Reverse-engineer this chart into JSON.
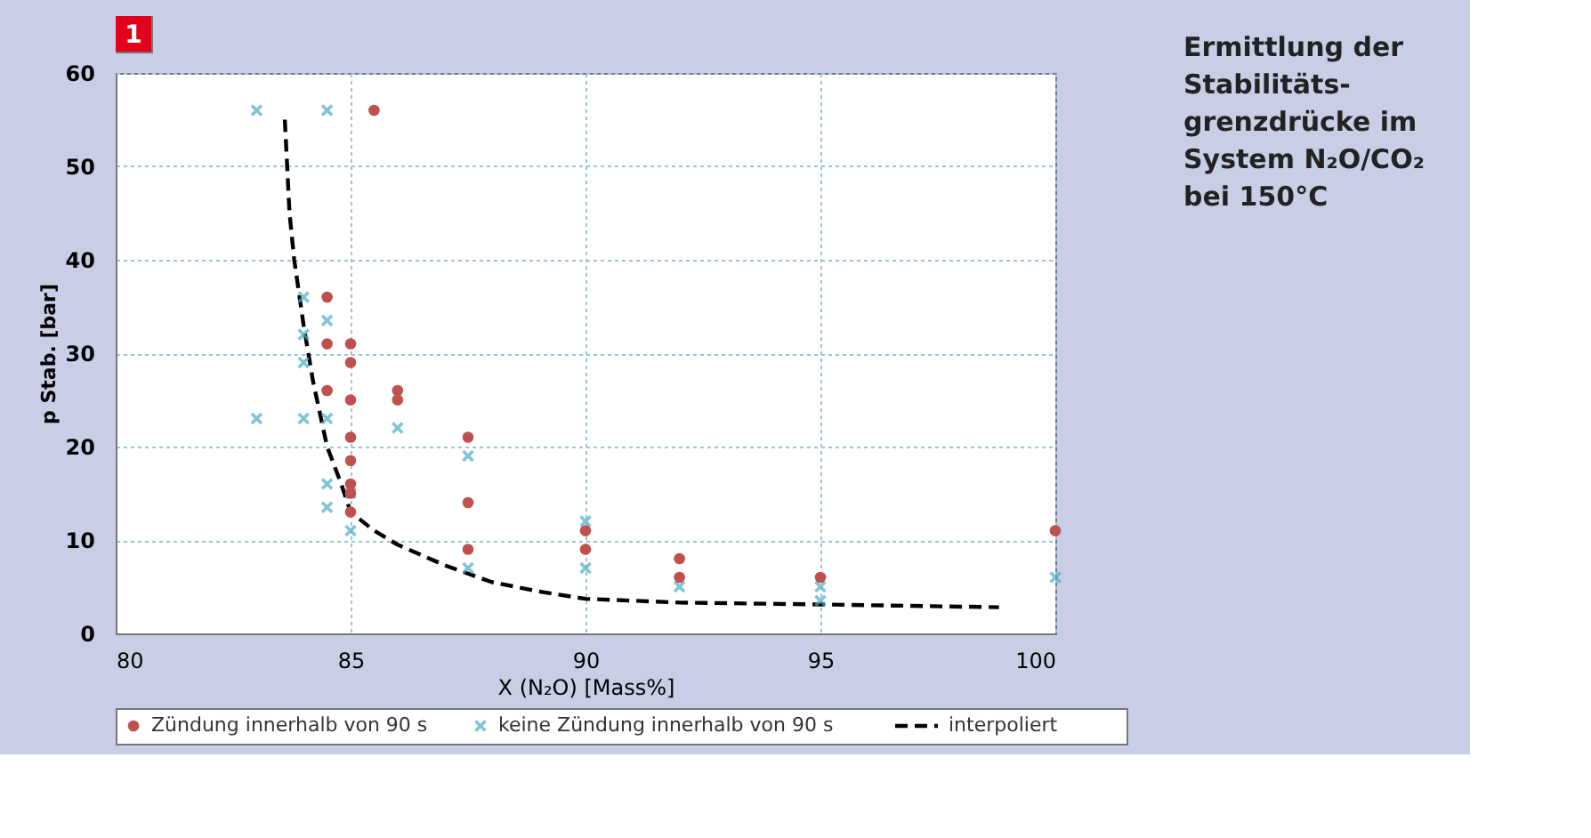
{
  "chart_data": {
    "type": "scatter",
    "title": "Ermittlung der Stabilitäts- grenzdrücke im System N₂O/CO₂ bei 150°C",
    "xlabel": "X (N₂O) [Mass%]",
    "ylabel": "p Stab. [bar]",
    "annotations": [
      "1"
    ],
    "xlim": [
      80,
      100
    ],
    "xticks": [
      80,
      85,
      90,
      95,
      100
    ],
    "ylim": [
      0,
      60
    ],
    "yticks": [
      0,
      10,
      20,
      30,
      40,
      50,
      60
    ],
    "grid": true,
    "legend": "bottom",
    "series": [
      {
        "name": "Zündung innerhalb von 90 s",
        "color": "#c0504d",
        "marker": "circle",
        "x": [
          85.5,
          84.5,
          84.5,
          84.5,
          85,
          85,
          85,
          85,
          85,
          85,
          85,
          85,
          86,
          86,
          87.5,
          87.5,
          87.5,
          90,
          90,
          92,
          92,
          95,
          100
        ],
        "values": [
          56,
          36,
          31,
          26,
          31,
          29,
          25,
          21,
          18.5,
          16,
          15,
          13,
          26,
          25,
          21,
          14,
          9,
          11,
          9,
          8,
          6,
          6,
          11
        ]
      },
      {
        "name": "keine Zündung innerhalb von 90 s",
        "color": "#4bacc6",
        "marker": "cross",
        "x": [
          83,
          84.5,
          84,
          84.5,
          84,
          84,
          83,
          84,
          84.5,
          84.5,
          84.5,
          85,
          85,
          86,
          87.5,
          87.5,
          90,
          90,
          92,
          95,
          95,
          100
        ],
        "values": [
          56,
          56,
          36,
          33.5,
          32,
          29,
          23,
          23,
          23,
          16,
          13.5,
          15,
          11,
          22,
          19,
          7,
          12,
          7,
          5,
          5,
          3.5,
          6
        ]
      },
      {
        "name": "interpoliert",
        "type": "line",
        "color": "#000000",
        "line_style": "dashed",
        "marker": "none",
        "x": [
          83.6,
          83.7,
          83.8,
          84,
          84.2,
          84.5,
          84.8,
          85,
          85.5,
          86,
          87,
          88,
          89,
          90,
          92,
          95,
          98.8
        ],
        "values": [
          55,
          45,
          40,
          33,
          27,
          20,
          16,
          13,
          11,
          9.5,
          7.3,
          5.5,
          4.5,
          3.7,
          3.3,
          3.1,
          2.8
        ]
      }
    ]
  }
}
